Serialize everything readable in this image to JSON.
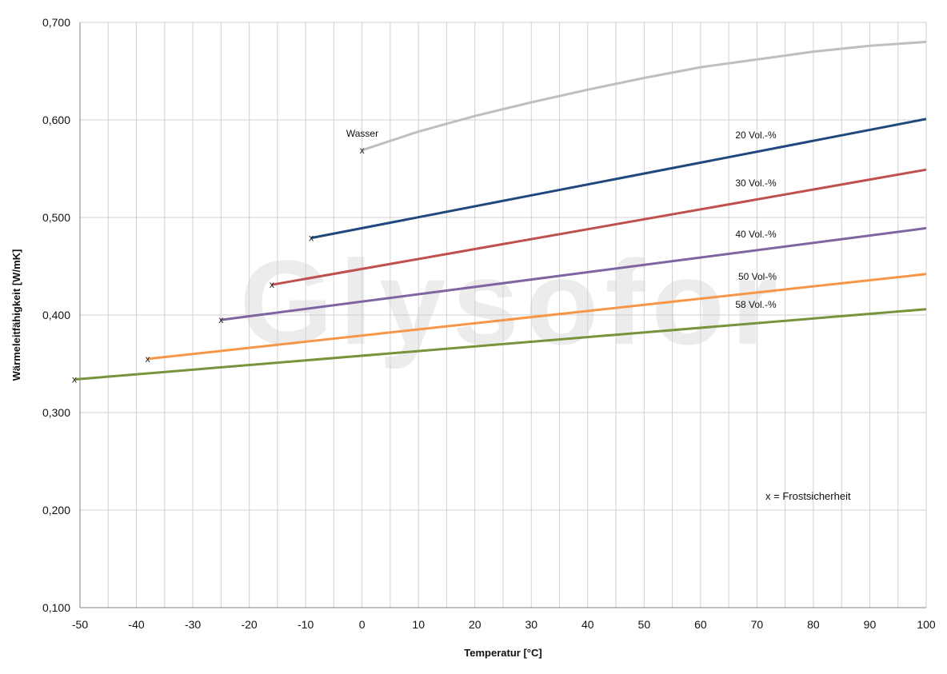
{
  "chart_data": {
    "type": "line",
    "xlabel": "Temperatur [°C]",
    "ylabel": "Wärmeleitfähigkeit [W/mK]",
    "xlim": [
      -50,
      100
    ],
    "ylim": [
      0.1,
      0.7
    ],
    "x_ticks": [
      "-50",
      "-40",
      "-30",
      "-20",
      "-10",
      "0",
      "10",
      "20",
      "30",
      "40",
      "50",
      "60",
      "70",
      "80",
      "90",
      "100"
    ],
    "y_ticks": [
      "0,100",
      "0,200",
      "0,300",
      "0,400",
      "0,500",
      "0,600",
      "0,700"
    ],
    "grid": true,
    "watermark": "Glysofor",
    "annotation": "x = Frostsicherheit",
    "marker_symbol": "x",
    "series": [
      {
        "name": "Wasser",
        "color": "#bfbfbf",
        "x": [
          0,
          10,
          20,
          30,
          40,
          50,
          60,
          70,
          80,
          90,
          100
        ],
        "y": [
          0.569,
          0.588,
          0.604,
          0.618,
          0.631,
          0.643,
          0.654,
          0.662,
          0.67,
          0.676,
          0.68
        ],
        "frost_point": [
          0,
          0.569
        ]
      },
      {
        "name": "20 Vol.-%",
        "color": "#1f497d",
        "x": [
          -9,
          100
        ],
        "y": [
          0.479,
          0.601
        ],
        "frost_point": [
          -9,
          0.479
        ]
      },
      {
        "name": "30 Vol.-%",
        "color": "#c0504d",
        "x": [
          -16,
          100
        ],
        "y": [
          0.431,
          0.549
        ],
        "frost_point": [
          -16,
          0.431
        ]
      },
      {
        "name": "40 Vol.-%",
        "color": "#8064a2",
        "x": [
          -25,
          100
        ],
        "y": [
          0.395,
          0.489
        ],
        "frost_point": [
          -25,
          0.395
        ]
      },
      {
        "name": "50 Vol-%",
        "color": "#f79646",
        "x": [
          -38,
          100
        ],
        "y": [
          0.355,
          0.442
        ],
        "frost_point": [
          -38,
          0.355
        ]
      },
      {
        "name": "58 Vol.-%",
        "color": "#77933c",
        "x": [
          -52,
          100
        ],
        "y": [
          0.334,
          0.406
        ],
        "frost_point": [
          -52,
          0.334
        ]
      }
    ]
  }
}
